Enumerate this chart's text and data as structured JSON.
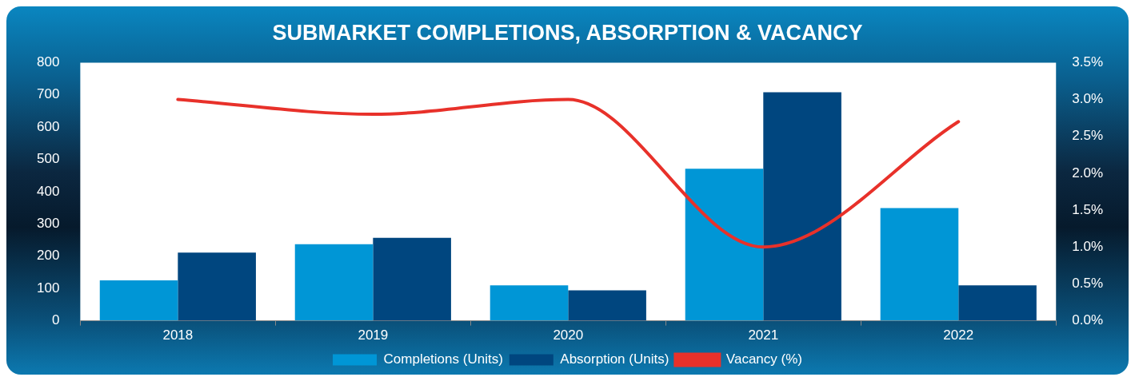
{
  "chart_data": {
    "type": "bar",
    "title": "SUBMARKET COMPLETIONS, ABSORPTION & VACANCY",
    "categories": [
      "2018",
      "2019",
      "2020",
      "2021",
      "2022"
    ],
    "series": [
      {
        "name": "Completions (Units)",
        "color": "#0096d6",
        "values": [
          125,
          237,
          110,
          471,
          349
        ]
      },
      {
        "name": "Absorption (Units)",
        "color": "#00467f",
        "values": [
          211,
          257,
          94,
          708,
          110
        ]
      },
      {
        "name": "Vacancy (%)",
        "type": "line",
        "axis": "y2",
        "color": "#e8312a",
        "values": [
          3.0,
          2.8,
          3.0,
          1.0,
          2.7
        ]
      }
    ],
    "ylim": [
      0,
      800
    ],
    "yticks": [
      0,
      100,
      200,
      300,
      400,
      500,
      600,
      700,
      800
    ],
    "y2lim": [
      0,
      3.5
    ],
    "y2ticks": [
      {
        "value": 0,
        "label": "0.0%"
      },
      {
        "value": 0.5,
        "label": "0.5%"
      },
      {
        "value": 1,
        "label": "1.0%"
      },
      {
        "value": 1.5,
        "label": "1.5%"
      },
      {
        "value": 2,
        "label": "2.0%"
      },
      {
        "value": 2.5,
        "label": "2.5%"
      },
      {
        "value": 3,
        "label": "3.0%"
      },
      {
        "value": 3.5,
        "label": "3.5%"
      }
    ],
    "grid": false,
    "legend": "bottom",
    "marker": "none",
    "line_style": "solid"
  }
}
